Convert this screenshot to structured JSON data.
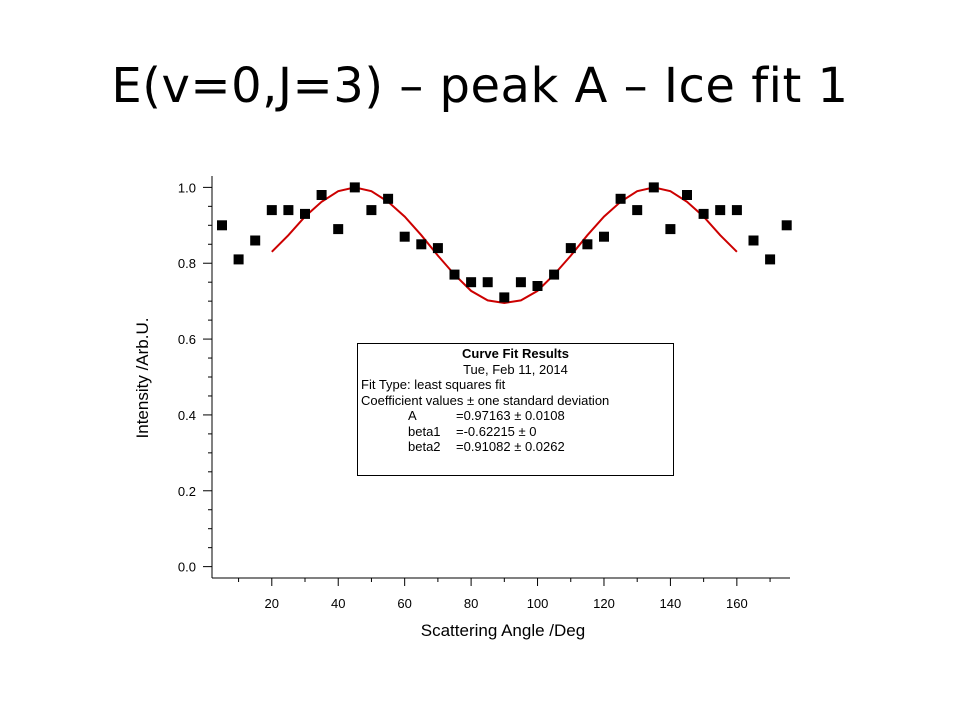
{
  "slide": {
    "title": "E(v=0,J=3) – peak A – Ice fit 1"
  },
  "chart_data": {
    "type": "scatter",
    "xlabel": "Scattering Angle /Deg",
    "ylabel": "Intensity /Arb.U.",
    "xlim": [
      2,
      176
    ],
    "ylim": [
      -0.03,
      1.03
    ],
    "x_ticks": [
      20,
      40,
      60,
      80,
      100,
      120,
      140,
      160
    ],
    "y_ticks": [
      "0.0",
      "0.2",
      "0.4",
      "0.6",
      "0.8",
      "1.0"
    ],
    "grid": false,
    "series": [
      {
        "kind": "points",
        "color": "#000000",
        "points": [
          [
            5,
            0.9
          ],
          [
            10,
            0.81
          ],
          [
            15,
            0.86
          ],
          [
            20,
            0.94
          ],
          [
            25,
            0.94
          ],
          [
            30,
            0.93
          ],
          [
            35,
            0.98
          ],
          [
            40,
            0.89
          ],
          [
            45,
            1.0
          ],
          [
            50,
            0.94
          ],
          [
            55,
            0.97
          ],
          [
            60,
            0.87
          ],
          [
            65,
            0.85
          ],
          [
            70,
            0.84
          ],
          [
            75,
            0.77
          ],
          [
            80,
            0.75
          ],
          [
            85,
            0.75
          ],
          [
            90,
            0.71
          ],
          [
            95,
            0.75
          ],
          [
            100,
            0.74
          ],
          [
            105,
            0.77
          ],
          [
            110,
            0.84
          ],
          [
            115,
            0.85
          ],
          [
            120,
            0.87
          ],
          [
            125,
            0.97
          ],
          [
            130,
            0.94
          ],
          [
            135,
            1.0
          ],
          [
            140,
            0.89
          ],
          [
            145,
            0.98
          ],
          [
            150,
            0.93
          ],
          [
            155,
            0.94
          ],
          [
            160,
            0.94
          ],
          [
            165,
            0.86
          ],
          [
            170,
            0.81
          ],
          [
            175,
            0.9
          ]
        ]
      },
      {
        "kind": "line",
        "color": "#cc0000",
        "points": [
          [
            20,
            0.83
          ],
          [
            25,
            0.874
          ],
          [
            30,
            0.923
          ],
          [
            35,
            0.962
          ],
          [
            40,
            0.99
          ],
          [
            45,
            1.0
          ],
          [
            50,
            0.99
          ],
          [
            55,
            0.962
          ],
          [
            60,
            0.923
          ],
          [
            65,
            0.874
          ],
          [
            70,
            0.82
          ],
          [
            75,
            0.77
          ],
          [
            80,
            0.727
          ],
          [
            85,
            0.702
          ],
          [
            90,
            0.695
          ],
          [
            95,
            0.702
          ],
          [
            100,
            0.727
          ],
          [
            105,
            0.77
          ],
          [
            110,
            0.82
          ],
          [
            115,
            0.874
          ],
          [
            120,
            0.923
          ],
          [
            125,
            0.962
          ],
          [
            130,
            0.99
          ],
          [
            135,
            1.0
          ],
          [
            140,
            0.99
          ],
          [
            145,
            0.962
          ],
          [
            150,
            0.923
          ],
          [
            155,
            0.874
          ],
          [
            160,
            0.83
          ]
        ]
      }
    ]
  },
  "fit_results": {
    "heading": "Curve Fit Results",
    "date": "Tue, Feb 11, 2014",
    "fit_type": "Fit Type: least squares fit",
    "coef_note": "Coefficient values ± one standard deviation",
    "coefficients": [
      {
        "name": "A",
        "value": "=0.97163 ± 0.0108"
      },
      {
        "name": "beta1",
        "value": "=-0.62215 ± 0"
      },
      {
        "name": "beta2",
        "value": "=0.91082 ± 0.0262"
      }
    ]
  }
}
